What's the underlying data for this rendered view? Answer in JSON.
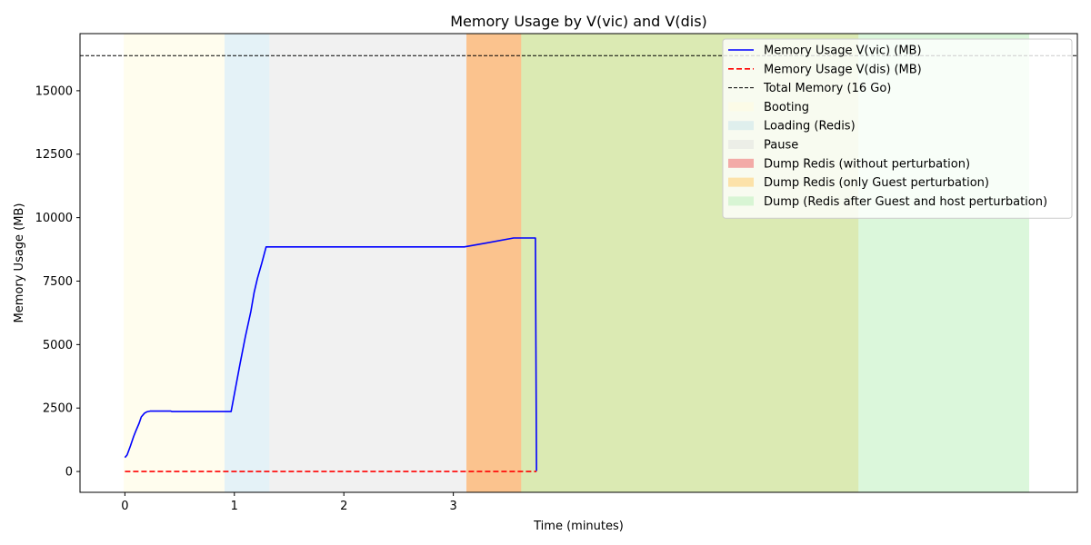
{
  "chart_data": {
    "type": "line",
    "title": "Memory Usage by V(vic) and V(dis)",
    "xlabel": "Time (minutes)",
    "ylabel": "Memory Usage (MB)",
    "xlim": [
      -0.41,
      8.7
    ],
    "ylim": [
      -820,
      17250
    ],
    "xticks": [
      0,
      1,
      2,
      3
    ],
    "yticks": [
      0,
      2500,
      5000,
      7500,
      10000,
      12500,
      15000
    ],
    "grid": false,
    "legend_position": "top-right",
    "series": [
      {
        "name": "Memory Usage V(vic) (MB)",
        "color": "#0000ff",
        "style": "solid",
        "x": [
          0,
          0.02,
          0.05,
          0.08,
          0.1,
          0.13,
          0.15,
          0.18,
          0.2,
          0.23,
          0.3,
          0.42,
          0.43,
          0.6,
          0.8,
          0.97,
          1.05,
          1.1,
          1.15,
          1.18,
          1.21,
          1.25,
          1.29,
          1.6,
          2.0,
          2.5,
          3.1,
          3.3,
          3.55,
          3.75,
          3.76
        ],
        "y": [
          550,
          650,
          1000,
          1380,
          1600,
          1900,
          2150,
          2300,
          2350,
          2380,
          2380,
          2380,
          2360,
          2360,
          2360,
          2360,
          4200,
          5300,
          6300,
          7050,
          7600,
          8200,
          8850,
          8850,
          8850,
          8850,
          8850,
          9000,
          9200,
          9200,
          20
        ]
      },
      {
        "name": "Memory Usage V(dis) (MB)",
        "color": "#ff0000",
        "style": "dashed",
        "x": [
          0,
          3.76
        ],
        "y": [
          0,
          0
        ]
      },
      {
        "name": "Total Memory (16 Go)",
        "color": "#000000",
        "style": "dashed-thin",
        "hline": 16384
      }
    ],
    "regions": [
      {
        "name": "Booting",
        "x0": -0.01,
        "x1": 0.91,
        "color": "#fffbe0",
        "opacity": 0.55
      },
      {
        "name": "Loading (Redis)",
        "x0": 0.91,
        "x1": 1.32,
        "color": "#add8e6",
        "opacity": 0.33
      },
      {
        "name": "Pause",
        "x0": 1.32,
        "x1": 3.12,
        "color": "#d3d3d3",
        "opacity": 0.33
      },
      {
        "name": "Dump Redis (without perturbation)",
        "x0": 3.12,
        "x1": 3.62,
        "color": "#f08080",
        "opacity": 0.65
      },
      {
        "name": "Dump Redis (only Guest perturbation)",
        "x0": 3.12,
        "x1": 6.7,
        "color": "#ffd27a",
        "opacity": 0.6
      },
      {
        "name": "Dump (Redis after Guest and host perturbation)",
        "x0": 3.62,
        "x1": 8.26,
        "color": "#b8f0b8",
        "opacity": 0.5
      }
    ]
  }
}
